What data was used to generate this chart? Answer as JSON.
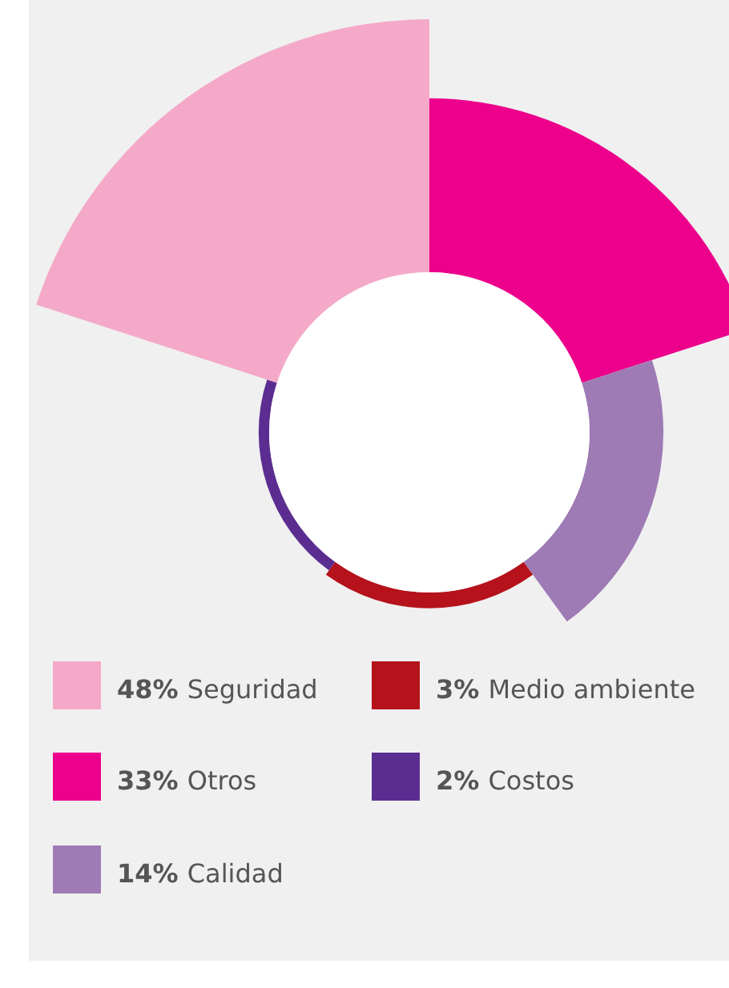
{
  "chart_data": {
    "type": "other",
    "categories": [
      "Seguridad",
      "Otros",
      "Calidad",
      "Medio ambiente",
      "Costos"
    ],
    "values": [
      48,
      33,
      14,
      3,
      2
    ],
    "value_labels": [
      "48%",
      "33%",
      "14%",
      "3%",
      "2%"
    ],
    "colors": [
      "#f4a9c8",
      "#ec008c",
      "#9e7bb5",
      "#b5121b",
      "#5c2d91"
    ]
  }
}
